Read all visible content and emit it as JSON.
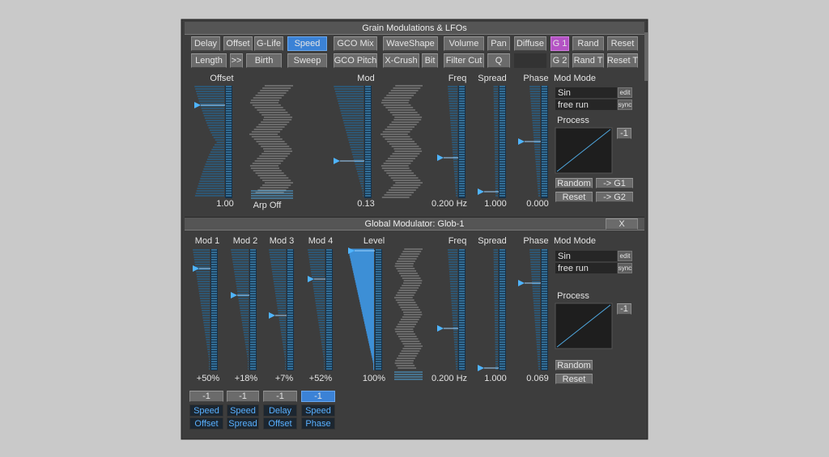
{
  "top_panel": {
    "title": "Grain Modulations & LFOs",
    "buttons_row1": [
      "Delay",
      "Offset",
      "G-Life",
      "Speed",
      "GCO Mix",
      "WaveShape",
      "Volume",
      "Pan",
      "Diffuse",
      "G 1",
      "Rand",
      "Reset"
    ],
    "buttons_row2": [
      "Length",
      ">>",
      "Birth",
      "Sweep",
      "GCO Pitch",
      "X-Crush",
      "Bit",
      "Filter Cut",
      "Q",
      "G 2",
      "Rand T",
      "Reset T"
    ],
    "sliders": [
      {
        "label": "Offset",
        "value": "1.00"
      },
      {
        "label": "Mod",
        "value": "0.13"
      },
      {
        "label": "Freq",
        "value": "0.200 Hz"
      },
      {
        "label": "Spread",
        "value": "1.000"
      },
      {
        "label": "Phase",
        "value": "0.000"
      }
    ],
    "arp": "Arp Off",
    "mod_mode": {
      "label": "Mod Mode",
      "wave": "Sin",
      "wave_button": "edit",
      "run": "free run",
      "run_button": "sync",
      "process": "Process",
      "process_button": "-1",
      "buttons": [
        "Random",
        "-> G1",
        "Reset",
        "-> G2"
      ]
    }
  },
  "bottom_panel": {
    "title": "Global Modulator: Glob-1",
    "close": "X",
    "sliders": [
      {
        "label": "Mod 1",
        "value": "+50%"
      },
      {
        "label": "Mod 2",
        "value": "+18%"
      },
      {
        "label": "Mod 3",
        "value": "+7%"
      },
      {
        "label": "Mod 4",
        "value": "+52%"
      },
      {
        "label": "Level",
        "value": "100%"
      },
      {
        "label": "Freq",
        "value": "0.200 Hz"
      },
      {
        "label": "Spread",
        "value": "1.000"
      },
      {
        "label": "Phase",
        "value": "0.069"
      }
    ],
    "mod_mode": {
      "label": "Mod Mode",
      "wave": "Sin",
      "wave_button": "edit",
      "run": "free run",
      "run_button": "sync",
      "process": "Process",
      "process_button": "-1",
      "buttons": [
        "Random",
        "Reset"
      ]
    },
    "mod_targets": [
      {
        "button": "-1",
        "top": "Speed",
        "bottom": "Offset"
      },
      {
        "button": "-1",
        "top": "Speed",
        "bottom": "Spread"
      },
      {
        "button": "-1",
        "top": "Delay",
        "bottom": "Offset"
      },
      {
        "button": "-1",
        "top": "Speed",
        "bottom": "Phase"
      }
    ]
  }
}
